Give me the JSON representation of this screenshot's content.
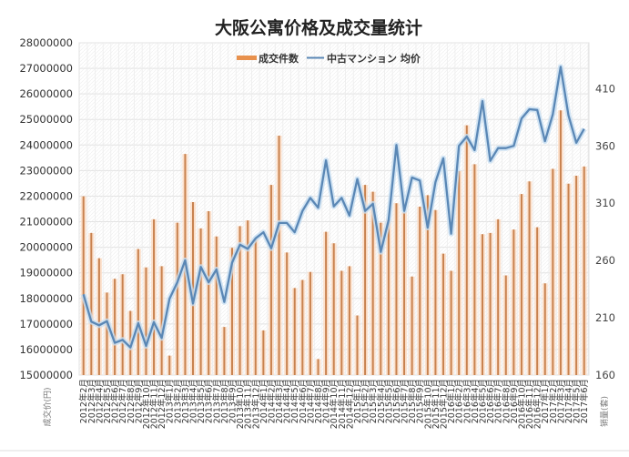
{
  "chart_data": {
    "type": "bar",
    "title": "大阪公寓价格及成交量统计",
    "categories": [
      "2012年2月",
      "2012年3月",
      "2012年4月",
      "2012年5月",
      "2012年6月",
      "2012年7月",
      "2012年8月",
      "2012年9月",
      "2012年10月",
      "2012年11月",
      "2012年12月",
      "2013年1月",
      "2013年2月",
      "2013年3月",
      "2013年4月",
      "2013年5月",
      "2013年6月",
      "2013年7月",
      "2013年8月",
      "2013年9月",
      "2013年10月",
      "2013年11月",
      "2013年12月",
      "2014年1月",
      "2014年2月",
      "2014年3月",
      "2014年4月",
      "2014年5月",
      "2014年6月",
      "2014年7月",
      "2014年8月",
      "2014年9月",
      "2014年10月",
      "2014年11月",
      "2014年12月",
      "2015年1月",
      "2015年2月",
      "2015年3月",
      "2015年4月",
      "2015年5月",
      "2015年6月",
      "2015年7月",
      "2015年8月",
      "2015年9月",
      "2015年10月",
      "2015年11月",
      "2015年12月",
      "2016年1月",
      "2016年2月",
      "2016年3月",
      "2016年4月",
      "2016年5月",
      "2016年6月",
      "2016年7月",
      "2016年8月",
      "2016年9月",
      "2016年10月",
      "2016年11月",
      "2016年12月",
      "2017年1月",
      "2017年2月",
      "2017年3月",
      "2017年4月",
      "2017年5月",
      "2017年6月"
    ],
    "series": [
      {
        "name": "成交件数",
        "type": "bar",
        "axis": "right",
        "values": [
          316,
          284,
          262,
          232,
          244,
          248,
          216,
          270,
          254,
          296,
          255,
          177,
          293,
          353,
          311,
          288,
          303,
          281,
          202,
          271,
          290,
          295,
          279,
          199,
          326,
          369,
          267,
          236,
          243,
          250,
          174,
          285,
          275,
          251,
          255,
          212,
          326,
          320,
          293,
          296,
          310,
          302,
          246,
          307,
          317,
          304,
          266,
          251,
          338,
          378,
          344,
          283,
          284,
          296,
          247,
          287,
          318,
          329,
          289,
          240,
          340,
          391,
          327,
          334,
          342
        ]
      },
      {
        "name": "中古マンション 均价",
        "type": "line",
        "axis": "left",
        "values": [
          18160000,
          17090000,
          16950000,
          17110000,
          16260000,
          16380000,
          16080000,
          17030000,
          16140000,
          17070000,
          16450000,
          17980000,
          18630000,
          19490000,
          17800000,
          19230000,
          18630000,
          19130000,
          17860000,
          19400000,
          20100000,
          19940000,
          20350000,
          20590000,
          19960000,
          20950000,
          20950000,
          20590000,
          21420000,
          21930000,
          21550000,
          23400000,
          21600000,
          21930000,
          21240000,
          22670000,
          21420000,
          21700000,
          19820000,
          21060000,
          24000000,
          21420000,
          22730000,
          22610000,
          20770000,
          22550000,
          23480000,
          20530000,
          23970000,
          24330000,
          23800000,
          25720000,
          23380000,
          23880000,
          23880000,
          23970000,
          25040000,
          25400000,
          25370000,
          24150000,
          25200000,
          27060000,
          25160000,
          24090000,
          24630000
        ]
      }
    ],
    "xlabel": "",
    "ylabel_left": "成交价(円)",
    "ylabel_right": "销量(套)",
    "ylim_left": [
      15000000,
      28000000
    ],
    "yticks_left": [
      "15000000",
      "16000000",
      "17000000",
      "18000000",
      "19000000",
      "20000000",
      "21000000",
      "22000000",
      "23000000",
      "24000000",
      "25000000",
      "26000000",
      "27000000",
      "28000000"
    ],
    "ylim_right": [
      160,
      450
    ],
    "yticks_right": [
      "160",
      "210",
      "260",
      "310",
      "360",
      "410"
    ],
    "grid": true,
    "legend": {
      "position": "top",
      "entries": [
        "成交件数",
        "中古マンション 均价"
      ]
    },
    "colors": {
      "bar": "#c8824f",
      "bar_glow": "#fcdcc4",
      "legend_bar": "#e8914d",
      "line": "#5a87b5",
      "line_glow": "#c6ddf1",
      "grid": "#e3e3e3"
    }
  }
}
